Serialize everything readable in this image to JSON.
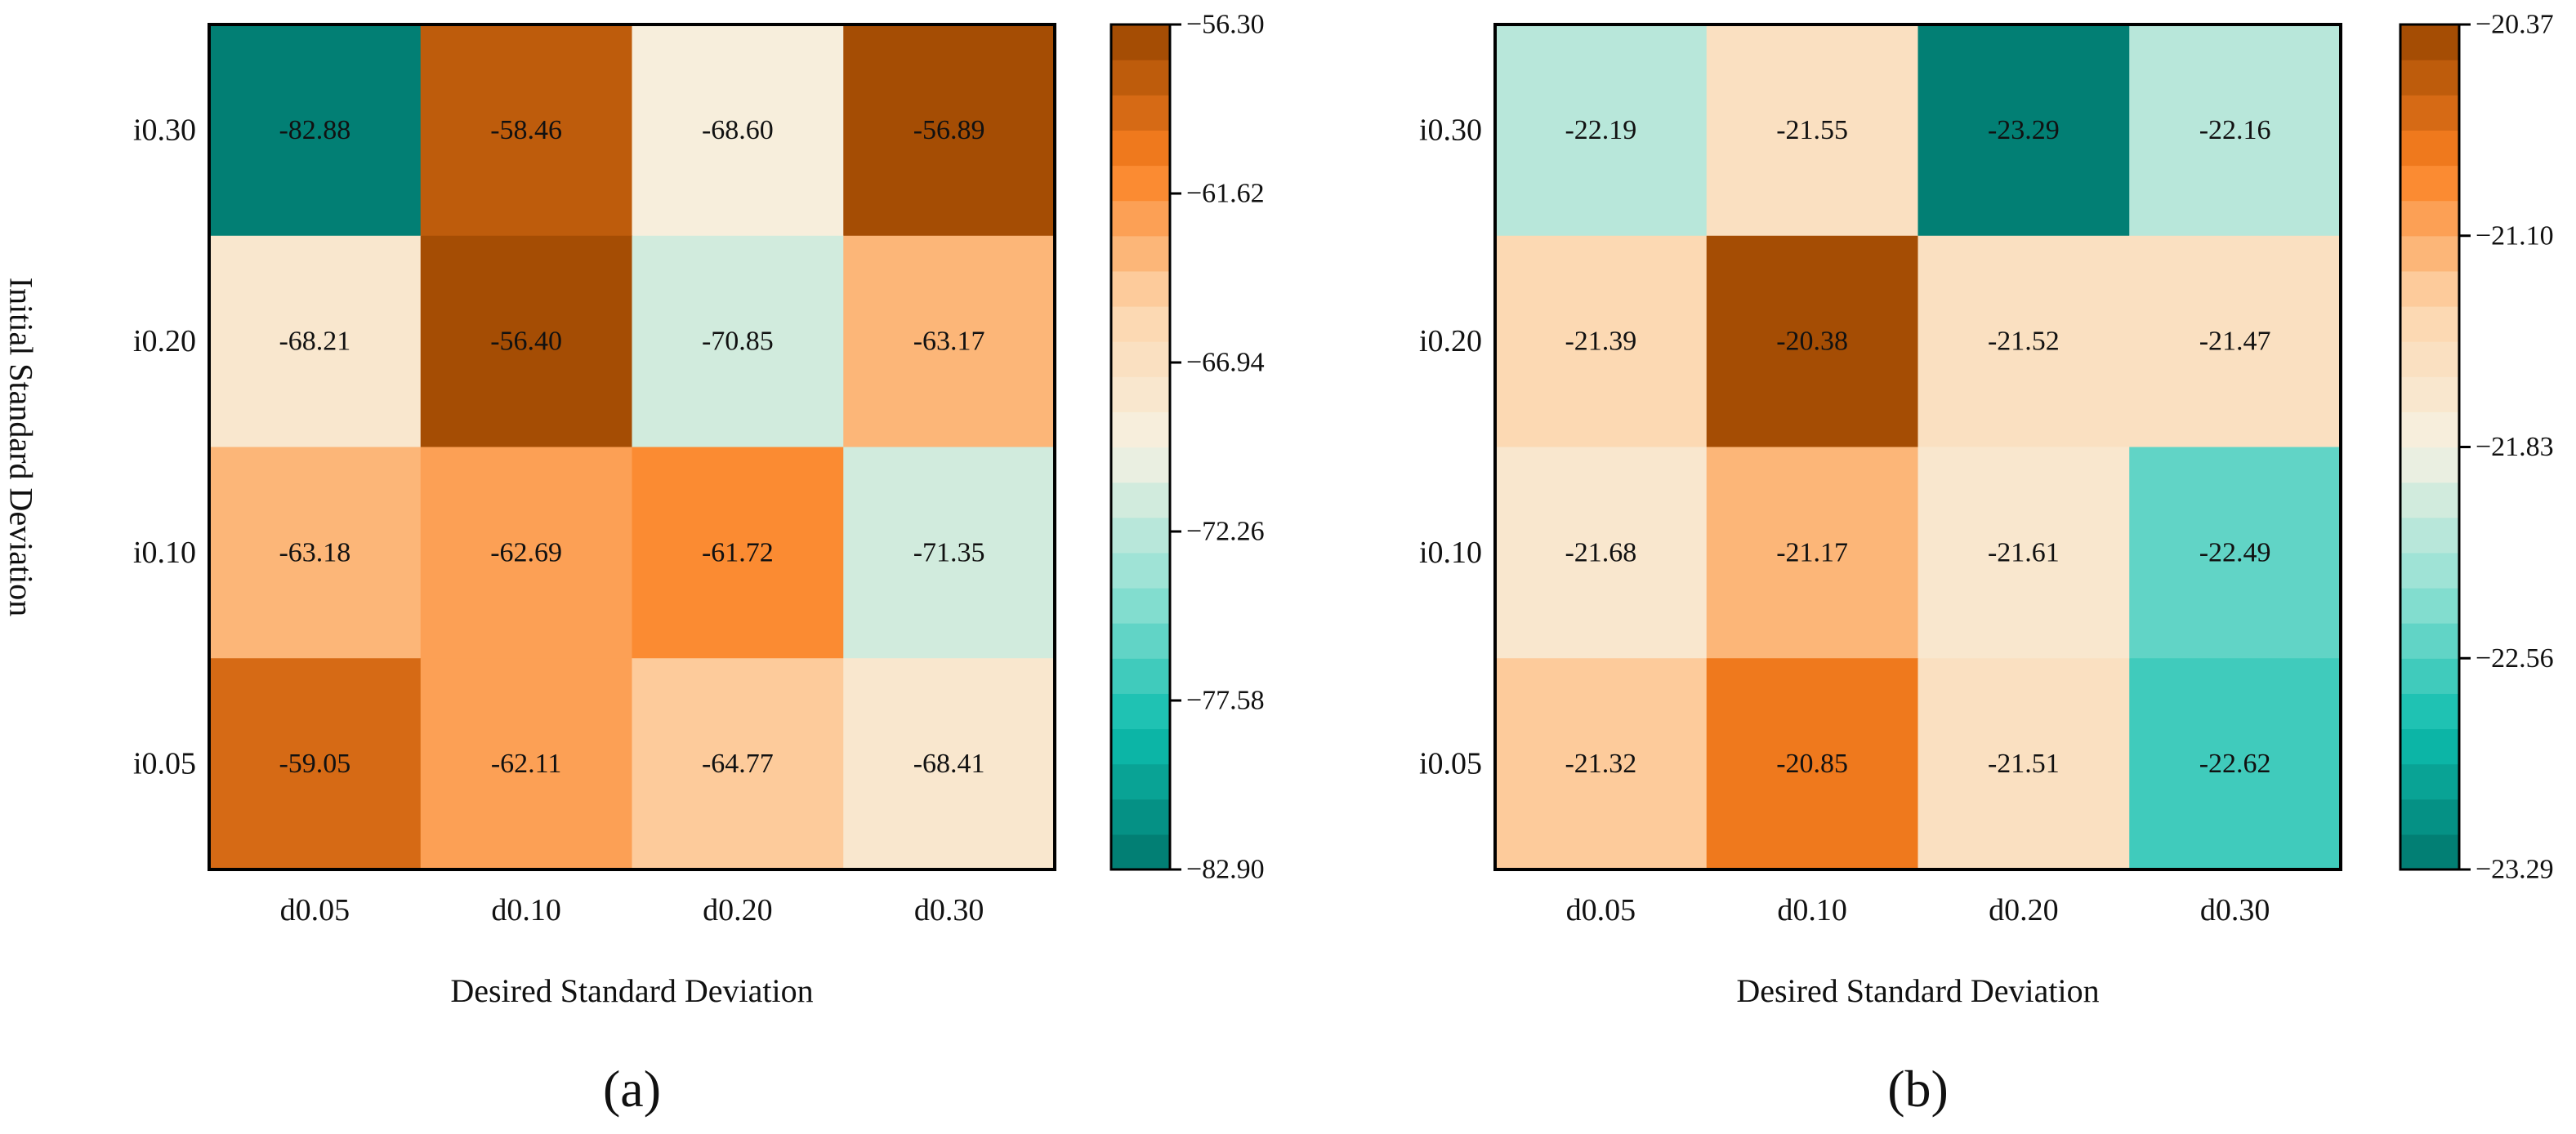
{
  "chart_data": [
    {
      "type": "heatmap",
      "panel_label": "(a)",
      "xlabel": "Desired Standard Deviation",
      "ylabel": "Initial Standard Deviation",
      "x_categories": [
        "d0.05",
        "d0.10",
        "d0.20",
        "d0.30"
      ],
      "y_categories": [
        "i0.30",
        "i0.20",
        "i0.10",
        "i0.05"
      ],
      "values": [
        [
          -82.88,
          -58.46,
          -68.6,
          -56.89
        ],
        [
          -68.21,
          -56.4,
          -70.85,
          -63.17
        ],
        [
          -63.18,
          -62.69,
          -61.72,
          -71.35
        ],
        [
          -59.05,
          -62.11,
          -64.77,
          -68.41
        ]
      ],
      "cell_labels": [
        [
          "-82.88",
          "-58.46",
          "-68.60",
          "-56.89"
        ],
        [
          "-68.21",
          "-56.40",
          "-70.85",
          "-63.17"
        ],
        [
          "-63.18",
          "-62.69",
          "-61.72",
          "-71.35"
        ],
        [
          "-59.05",
          "-62.11",
          "-64.77",
          "-68.41"
        ]
      ],
      "colorbar": {
        "min": -82.9,
        "max": -56.3,
        "ticks": [
          -56.3,
          -61.62,
          -66.94,
          -72.26,
          -77.58,
          -82.9
        ],
        "tick_labels": [
          "−56.30",
          "−61.62",
          "−66.94",
          "−72.26",
          "−77.58",
          "−82.90"
        ],
        "levels": 24
      }
    },
    {
      "type": "heatmap",
      "panel_label": "(b)",
      "xlabel": "Desired Standard Deviation",
      "ylabel": "",
      "x_categories": [
        "d0.05",
        "d0.10",
        "d0.20",
        "d0.30"
      ],
      "y_categories": [
        "i0.30",
        "i0.20",
        "i0.10",
        "i0.05"
      ],
      "values": [
        [
          -22.19,
          -21.55,
          -23.29,
          -22.16
        ],
        [
          -21.39,
          -20.38,
          -21.52,
          -21.47
        ],
        [
          -21.68,
          -21.17,
          -21.61,
          -22.49
        ],
        [
          -21.32,
          -20.85,
          -21.51,
          -22.62
        ]
      ],
      "cell_labels": [
        [
          "-22.19",
          "-21.55",
          "-23.29",
          "-22.16"
        ],
        [
          "-21.39",
          "-20.38",
          "-21.52",
          "-21.47"
        ],
        [
          "-21.68",
          "-21.17",
          "-21.61",
          "-22.49"
        ],
        [
          "-21.32",
          "-20.85",
          "-21.51",
          "-22.62"
        ]
      ],
      "colorbar": {
        "min": -23.29,
        "max": -20.37,
        "ticks": [
          -20.37,
          -21.1,
          -21.83,
          -22.56,
          -23.29
        ],
        "tick_labels": [
          "−20.37",
          "−21.10",
          "−21.83",
          "−22.56",
          "−23.29"
        ],
        "levels": 24
      }
    }
  ],
  "colormap": {
    "name": "teal-to-brown diverging",
    "stops": [
      "#00766c",
      "#0ebeae",
      "#93e1d4",
      "#f6f1e3",
      "#fdd6ac",
      "#fb8021",
      "#994600"
    ]
  }
}
